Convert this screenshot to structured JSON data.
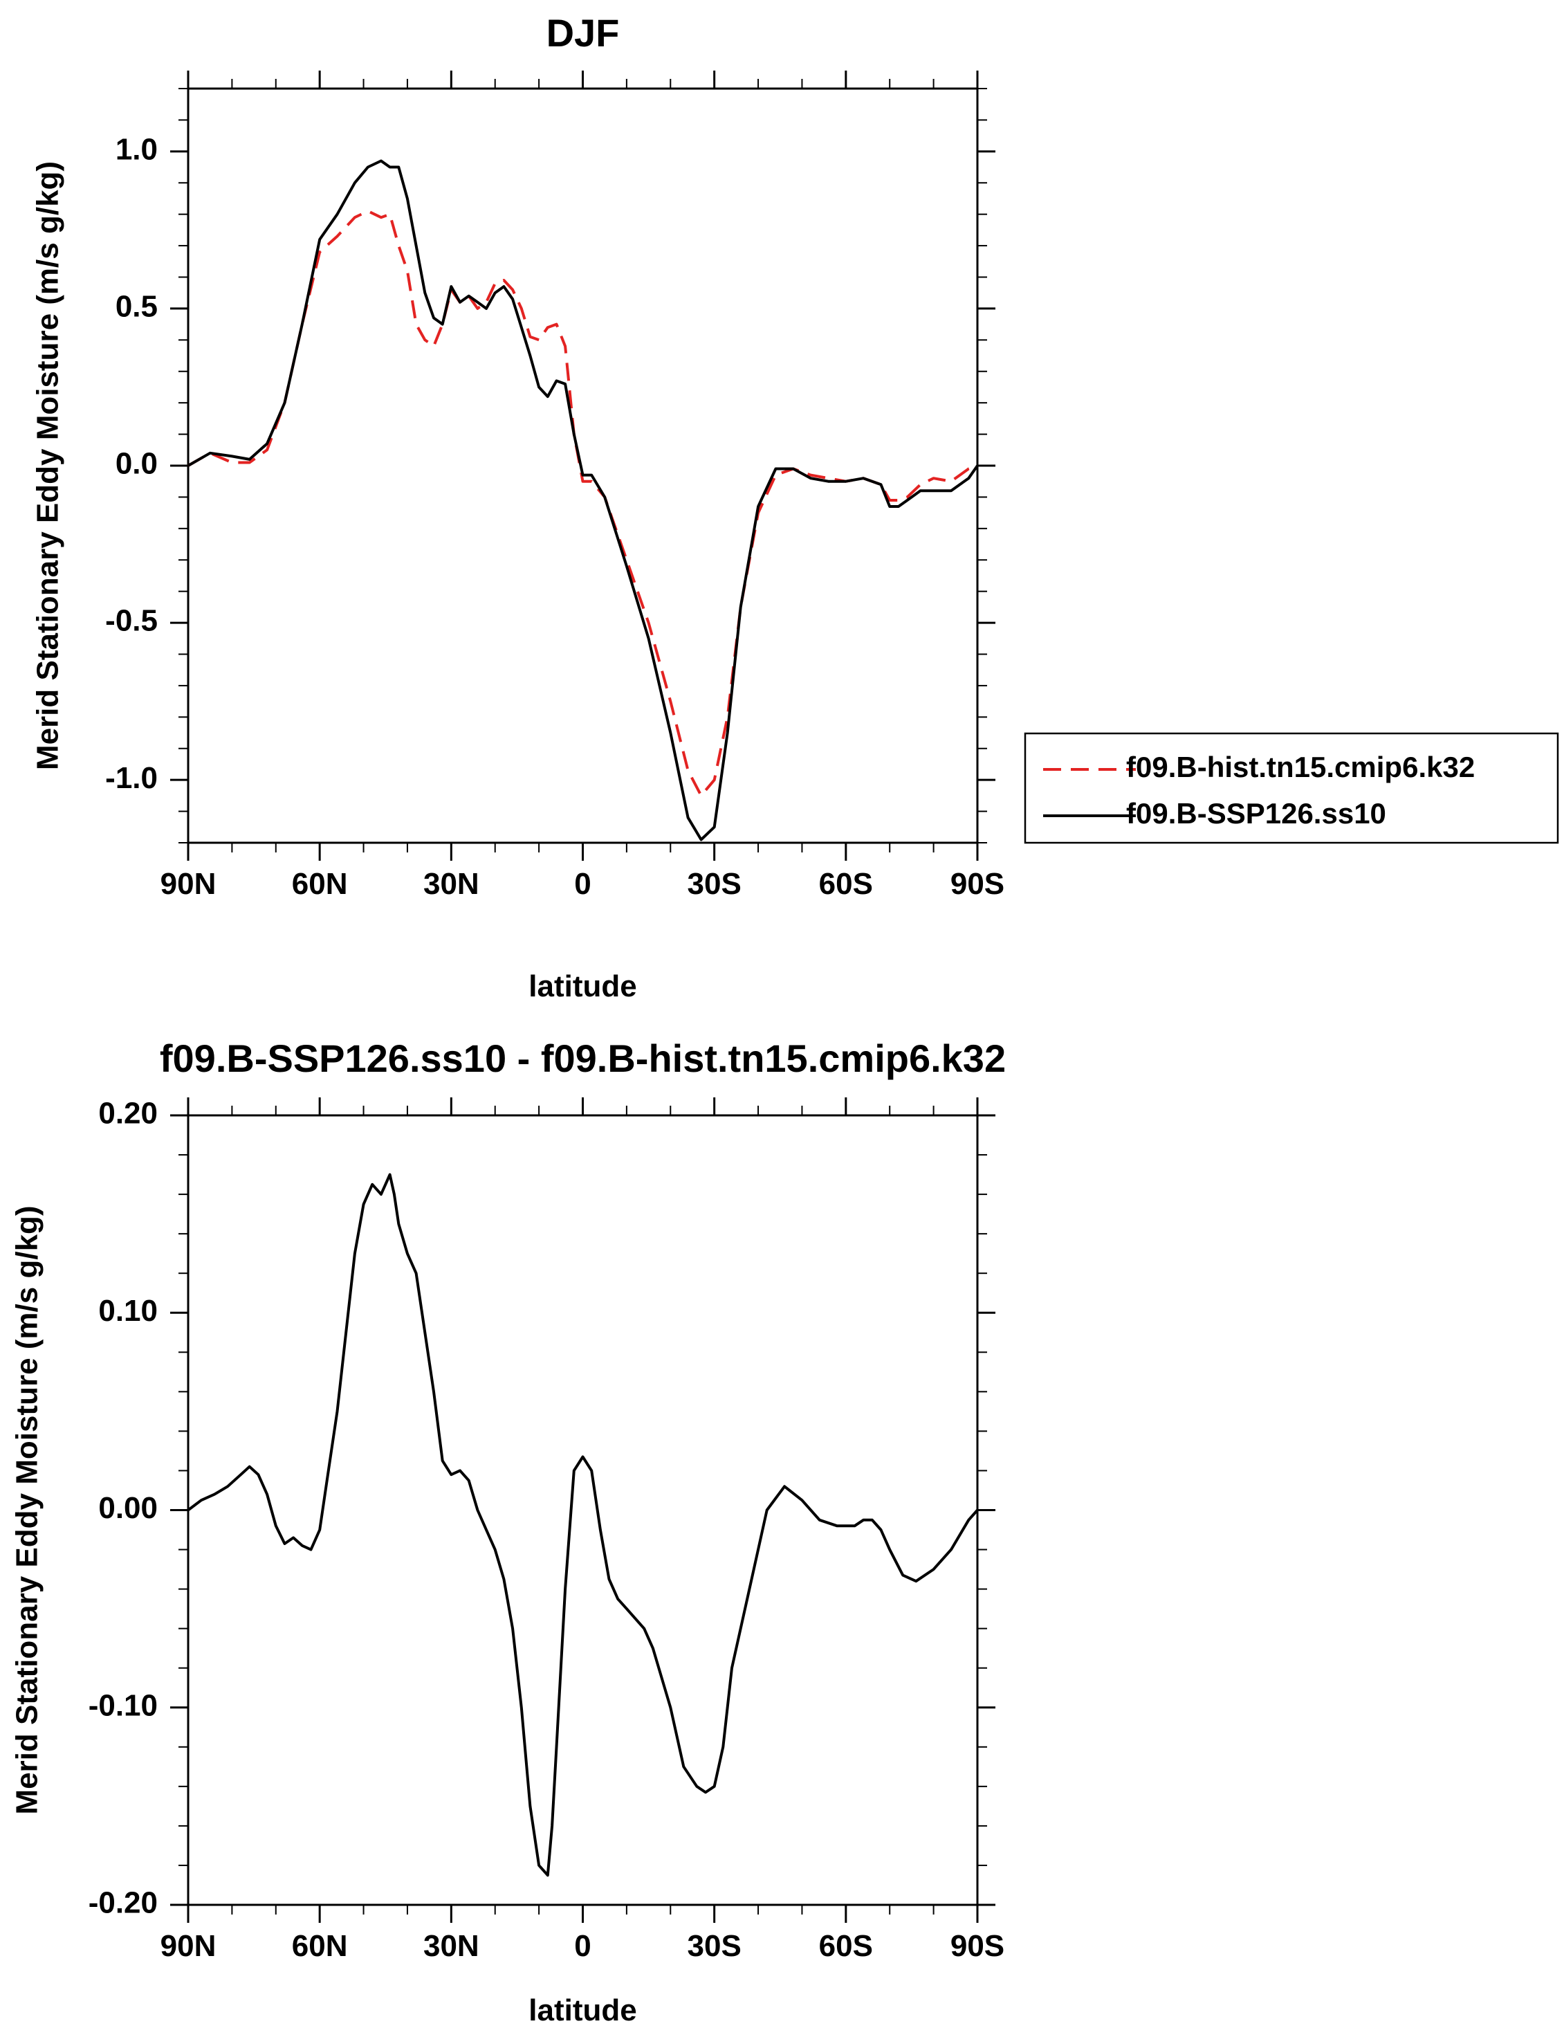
{
  "chart_data": [
    {
      "type": "line",
      "title": "DJF",
      "xlabel": "latitude",
      "ylabel": "Merid Stationary Eddy Moisture (m/s g/kg)",
      "xlim": [
        90,
        -90
      ],
      "ylim": [
        -1.2,
        1.2
      ],
      "x_ticks": [
        90,
        60,
        30,
        0,
        -30,
        -60,
        -90
      ],
      "x_tick_labels": [
        "90N",
        "60N",
        "30N",
        "0",
        "30S",
        "60S",
        "90S"
      ],
      "y_ticks": [
        -1.0,
        -0.5,
        0.0,
        0.5,
        1.0
      ],
      "y_tick_labels": [
        "-1.0",
        "-0.5",
        "0.0",
        "0.5",
        "1.0"
      ],
      "grid": false,
      "legend_position": "right",
      "x": [
        90,
        85,
        80,
        76,
        72,
        68,
        64,
        60,
        56,
        52,
        49,
        46,
        44,
        42,
        40,
        38,
        36,
        34,
        32,
        30,
        28,
        26,
        24,
        22,
        20,
        18,
        16,
        14,
        12,
        10,
        8,
        6,
        4,
        2,
        0,
        -2,
        -5,
        -10,
        -15,
        -20,
        -24,
        -27,
        -30,
        -33,
        -36,
        -40,
        -44,
        -48,
        -52,
        -56,
        -60,
        -64,
        -68,
        -70,
        -72,
        -74,
        -77,
        -80,
        -84,
        -88,
        -90
      ],
      "series": [
        {
          "name": "f09.B-hist.tn15.cmip6.k32",
          "color": "#e32322",
          "dash": "dashed",
          "values": [
            0.0,
            0.04,
            0.01,
            0.01,
            0.05,
            0.2,
            0.45,
            0.68,
            0.73,
            0.79,
            0.81,
            0.79,
            0.8,
            0.7,
            0.62,
            0.45,
            0.4,
            0.38,
            0.45,
            0.56,
            0.52,
            0.54,
            0.5,
            0.52,
            0.58,
            0.59,
            0.56,
            0.5,
            0.41,
            0.4,
            0.44,
            0.45,
            0.38,
            0.1,
            -0.05,
            -0.05,
            -0.1,
            -0.3,
            -0.5,
            -0.75,
            -0.97,
            -1.05,
            -1.0,
            -0.8,
            -0.45,
            -0.15,
            -0.03,
            -0.01,
            -0.03,
            -0.04,
            -0.05,
            -0.04,
            -0.06,
            -0.11,
            -0.11,
            -0.1,
            -0.06,
            -0.04,
            -0.05,
            -0.01,
            0.0
          ]
        },
        {
          "name": "f09.B-SSP126.ss10",
          "color": "#000000",
          "dash": "solid",
          "values": [
            0.0,
            0.04,
            0.03,
            0.02,
            0.07,
            0.2,
            0.45,
            0.72,
            0.8,
            0.9,
            0.95,
            0.97,
            0.95,
            0.95,
            0.85,
            0.7,
            0.55,
            0.47,
            0.45,
            0.57,
            0.52,
            0.54,
            0.52,
            0.5,
            0.55,
            0.57,
            0.53,
            0.44,
            0.35,
            0.25,
            0.22,
            0.27,
            0.26,
            0.1,
            -0.03,
            -0.03,
            -0.1,
            -0.32,
            -0.55,
            -0.85,
            -1.12,
            -1.19,
            -1.15,
            -0.85,
            -0.45,
            -0.13,
            -0.01,
            -0.01,
            -0.04,
            -0.05,
            -0.05,
            -0.04,
            -0.06,
            -0.13,
            -0.13,
            -0.11,
            -0.08,
            -0.08,
            -0.08,
            -0.04,
            0.0
          ]
        }
      ]
    },
    {
      "type": "line",
      "title": "f09.B-SSP126.ss10 - f09.B-hist.tn15.cmip6.k32",
      "xlabel": "latitude",
      "ylabel": "Merid Stationary Eddy Moisture (m/s g/kg)",
      "xlim": [
        90,
        -90
      ],
      "ylim": [
        -0.2,
        0.2
      ],
      "x_ticks": [
        90,
        60,
        30,
        0,
        -30,
        -60,
        -90
      ],
      "x_tick_labels": [
        "90N",
        "60N",
        "30N",
        "0",
        "30S",
        "60S",
        "90S"
      ],
      "y_ticks": [
        -0.2,
        -0.1,
        0.0,
        0.1,
        0.2
      ],
      "y_tick_labels": [
        "-0.20",
        "-0.10",
        "0.00",
        "0.10",
        "0.20"
      ],
      "grid": false,
      "x": [
        90,
        87,
        84,
        81,
        78,
        76,
        74,
        72,
        70,
        68,
        66,
        64,
        62,
        60,
        58,
        56,
        54,
        52,
        50,
        48,
        46,
        45,
        44,
        43,
        42,
        40,
        38,
        36,
        34,
        32,
        30,
        28,
        26,
        24,
        22,
        20,
        18,
        16,
        14,
        12,
        10,
        8,
        7,
        6,
        4,
        2,
        0,
        -2,
        -4,
        -6,
        -8,
        -10,
        -12,
        -14,
        -16,
        -20,
        -23,
        -26,
        -28,
        -30,
        -32,
        -34,
        -38,
        -42,
        -46,
        -50,
        -54,
        -58,
        -62,
        -64,
        -66,
        -68,
        -70,
        -73,
        -76,
        -80,
        -84,
        -88,
        -90
      ],
      "series": [
        {
          "color": "#000000",
          "dash": "solid",
          "values": [
            0.0,
            0.005,
            0.008,
            0.012,
            0.018,
            0.022,
            0.018,
            0.008,
            -0.008,
            -0.017,
            -0.014,
            -0.018,
            -0.02,
            -0.01,
            0.02,
            0.05,
            0.09,
            0.13,
            0.155,
            0.165,
            0.16,
            0.165,
            0.17,
            0.16,
            0.145,
            0.13,
            0.12,
            0.09,
            0.06,
            0.025,
            0.018,
            0.02,
            0.015,
            0.0,
            -0.01,
            -0.02,
            -0.035,
            -0.06,
            -0.1,
            -0.15,
            -0.18,
            -0.185,
            -0.16,
            -0.12,
            -0.04,
            0.02,
            0.027,
            0.02,
            -0.01,
            -0.035,
            -0.045,
            -0.05,
            -0.055,
            -0.06,
            -0.07,
            -0.1,
            -0.13,
            -0.14,
            -0.143,
            -0.14,
            -0.12,
            -0.08,
            -0.04,
            0.0,
            0.012,
            0.005,
            -0.005,
            -0.008,
            -0.008,
            -0.005,
            -0.005,
            -0.01,
            -0.02,
            -0.033,
            -0.036,
            -0.03,
            -0.02,
            -0.005,
            0.0
          ]
        }
      ]
    }
  ]
}
